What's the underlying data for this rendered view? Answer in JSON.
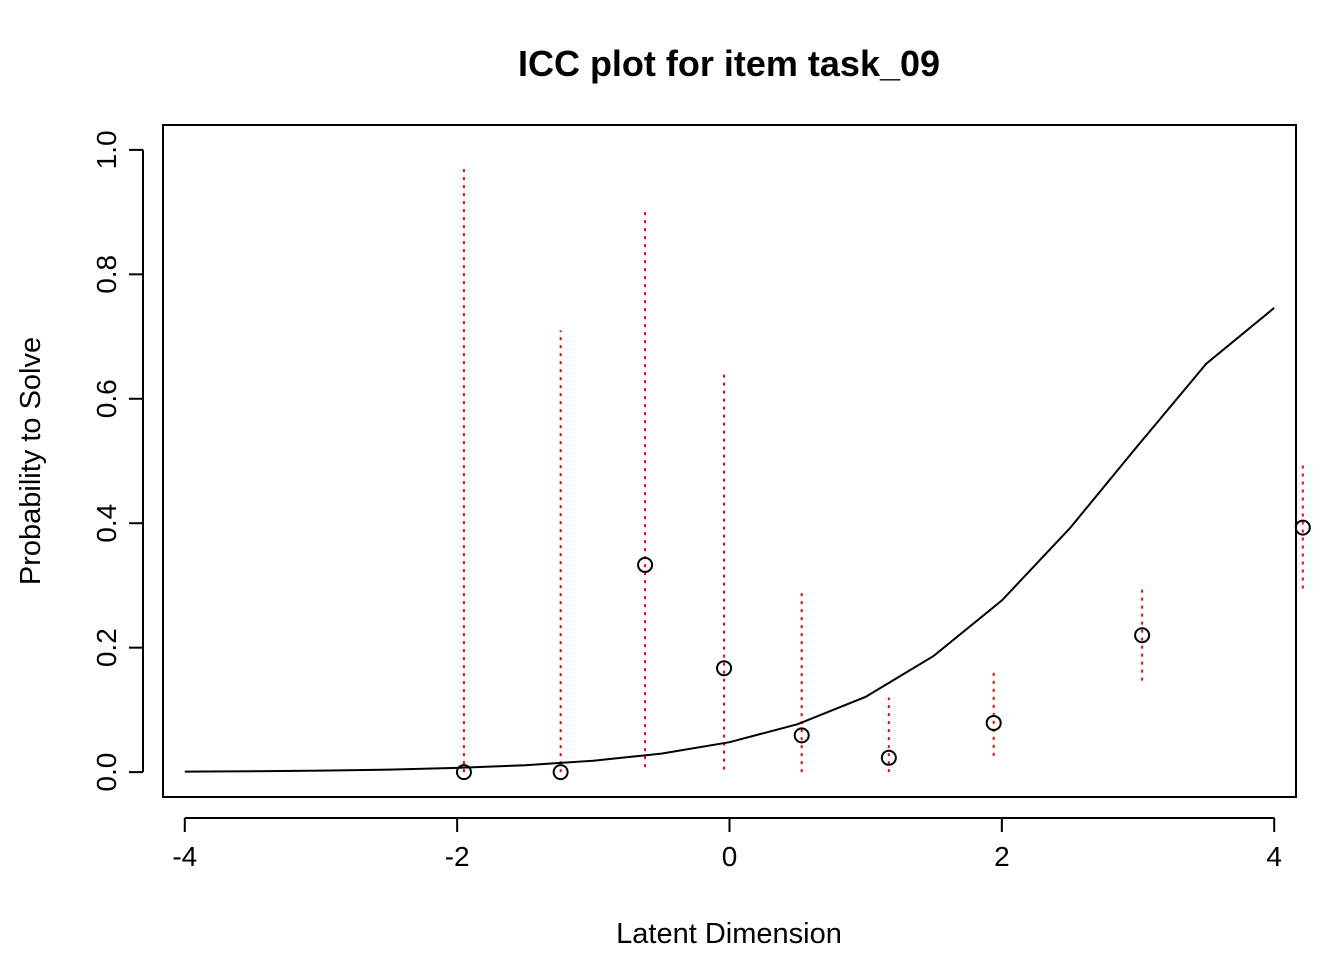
{
  "chart_data": {
    "type": "line",
    "title": "ICC plot for item  task_09",
    "xlabel": "Latent Dimension",
    "ylabel": "Probability to Solve",
    "xlim": [
      -4.16,
      4.16
    ],
    "ylim": [
      -0.04,
      1.04
    ],
    "x_ticks": [
      -4,
      -2,
      0,
      2,
      4
    ],
    "x_tick_labels": [
      "-4",
      "-2",
      "0",
      "2",
      "4"
    ],
    "y_ticks": [
      0.0,
      0.2,
      0.4,
      0.6,
      0.8,
      1.0
    ],
    "y_tick_labels": [
      "0.0",
      "0.2",
      "0.4",
      "0.6",
      "0.8",
      "1.0"
    ],
    "grid": false,
    "series": [
      {
        "kind": "curve",
        "color": "#000000",
        "x": [
          -4.0,
          -3.5,
          -3.0,
          -2.5,
          -2.0,
          -1.5,
          -1.0,
          -0.5,
          0.0,
          0.5,
          1.0,
          1.5,
          2.0,
          2.5,
          3.0,
          3.5,
          4.0
        ],
        "y": [
          0.0009,
          0.0015,
          0.0025,
          0.0041,
          0.0068,
          0.0111,
          0.0183,
          0.0298,
          0.048,
          0.077,
          0.121,
          0.187,
          0.276,
          0.392,
          0.525,
          0.656,
          0.746
        ]
      },
      {
        "kind": "points",
        "color": "#000000",
        "x": [
          -1.95,
          -1.24,
          -0.62,
          -0.04,
          0.53,
          1.17,
          1.94,
          3.03,
          4.21
        ],
        "y": [
          0.0,
          0.0,
          0.333,
          0.167,
          0.059,
          0.023,
          0.079,
          0.22,
          0.393
        ]
      },
      {
        "kind": "error_bars",
        "color": "#ff0000",
        "x": [
          -1.95,
          -1.24,
          -0.62,
          -0.04,
          0.53,
          1.17,
          1.94,
          3.03,
          4.21
        ],
        "lower": [
          0.0,
          0.0,
          0.008,
          0.004,
          0.0,
          0.0,
          0.026,
          0.147,
          0.295
        ],
        "upper": [
          0.97,
          0.71,
          0.9,
          0.64,
          0.29,
          0.12,
          0.164,
          0.296,
          0.495
        ]
      }
    ]
  }
}
